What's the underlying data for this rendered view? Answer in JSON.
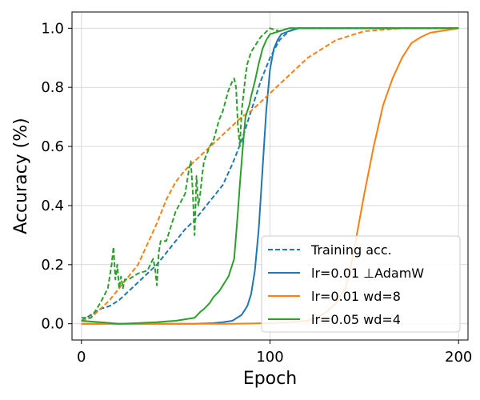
{
  "chart_data": {
    "type": "line",
    "title": "",
    "xlabel": "Epoch",
    "ylabel": "Accuracy (%)",
    "xlim": [
      -5,
      205
    ],
    "ylim": [
      -0.055,
      1.055
    ],
    "xticks": [
      0,
      100,
      200
    ],
    "yticks": [
      0.0,
      0.2,
      0.4,
      0.6,
      0.8,
      1.0
    ],
    "xtick_labels": [
      "0",
      "100",
      "200"
    ],
    "ytick_labels": [
      "0.0",
      "0.2",
      "0.4",
      "0.6",
      "0.8",
      "1.0"
    ],
    "grid": true,
    "legend_position": "lower-right",
    "legend": [
      {
        "label": "Training acc.",
        "color": "#1f77b4",
        "style": "dashed"
      },
      {
        "label": "lr=0.01 ⊥AdamW",
        "color": "#1f77b4",
        "style": "solid"
      },
      {
        "label": "lr=0.01 wd=8",
        "color": "#ff7f0e",
        "style": "solid"
      },
      {
        "label": "lr=0.05 wd=4",
        "color": "#2ca02c",
        "style": "solid"
      }
    ],
    "series": [
      {
        "color": "#1f77b4",
        "style": "dashed",
        "x": [
          0,
          5,
          10,
          15,
          20,
          25,
          30,
          35,
          40,
          45,
          50,
          55,
          60,
          65,
          70,
          75,
          80,
          85,
          90,
          95,
          100,
          105,
          110,
          115,
          120,
          200
        ],
        "values": [
          0.01,
          0.03,
          0.05,
          0.06,
          0.08,
          0.11,
          0.14,
          0.17,
          0.2,
          0.24,
          0.28,
          0.32,
          0.35,
          0.39,
          0.43,
          0.47,
          0.54,
          0.62,
          0.72,
          0.82,
          0.9,
          0.96,
          0.99,
          1.0,
          1.0,
          1.0
        ]
      },
      {
        "color": "#1f77b4",
        "style": "solid",
        "x": [
          0,
          20,
          40,
          60,
          70,
          75,
          80,
          85,
          88,
          90,
          92,
          94,
          96,
          98,
          100,
          102,
          104,
          106,
          110,
          115,
          120,
          200
        ],
        "values": [
          0.0,
          0.0,
          0.0,
          0.0,
          0.002,
          0.005,
          0.01,
          0.03,
          0.06,
          0.1,
          0.18,
          0.32,
          0.52,
          0.72,
          0.86,
          0.93,
          0.96,
          0.98,
          0.99,
          1.0,
          1.0,
          1.0
        ]
      },
      {
        "color": "#ff7f0e",
        "style": "dashed",
        "x": [
          0,
          5,
          10,
          15,
          20,
          25,
          30,
          35,
          40,
          45,
          50,
          55,
          60,
          65,
          70,
          75,
          80,
          85,
          90,
          95,
          100,
          105,
          110,
          115,
          120,
          125,
          130,
          135,
          140,
          145,
          150,
          160,
          170,
          180,
          190,
          200
        ],
        "values": [
          0.01,
          0.02,
          0.05,
          0.08,
          0.12,
          0.16,
          0.2,
          0.27,
          0.34,
          0.42,
          0.48,
          0.52,
          0.55,
          0.58,
          0.61,
          0.64,
          0.67,
          0.7,
          0.72,
          0.75,
          0.78,
          0.81,
          0.84,
          0.87,
          0.9,
          0.92,
          0.94,
          0.96,
          0.97,
          0.98,
          0.99,
          0.995,
          1.0,
          1.0,
          1.0,
          1.0
        ]
      },
      {
        "color": "#ff7f0e",
        "style": "solid",
        "x": [
          0,
          40,
          80,
          100,
          110,
          120,
          125,
          130,
          135,
          140,
          143,
          146,
          150,
          155,
          160,
          165,
          170,
          175,
          180,
          185,
          190,
          195,
          200
        ],
        "values": [
          0.0,
          0.0,
          0.0,
          0.002,
          0.005,
          0.01,
          0.02,
          0.04,
          0.07,
          0.12,
          0.2,
          0.3,
          0.44,
          0.6,
          0.74,
          0.83,
          0.9,
          0.95,
          0.97,
          0.985,
          0.99,
          0.995,
          1.0
        ]
      },
      {
        "color": "#2ca02c",
        "style": "dashed",
        "x": [
          0,
          5,
          10,
          14,
          16,
          17,
          18,
          19,
          20,
          21,
          22,
          23,
          25,
          30,
          35,
          38,
          39,
          40,
          41,
          42,
          45,
          50,
          55,
          57,
          58,
          59,
          60,
          61,
          62,
          63,
          64,
          65,
          68,
          70,
          73,
          75,
          78,
          80,
          81,
          82,
          83,
          84,
          85,
          86,
          87,
          88,
          90,
          95,
          100,
          105,
          110,
          115,
          120,
          200
        ],
        "values": [
          0.02,
          0.02,
          0.07,
          0.12,
          0.2,
          0.26,
          0.15,
          0.2,
          0.12,
          0.16,
          0.12,
          0.15,
          0.15,
          0.17,
          0.18,
          0.22,
          0.19,
          0.13,
          0.24,
          0.28,
          0.28,
          0.38,
          0.44,
          0.52,
          0.55,
          0.45,
          0.3,
          0.5,
          0.4,
          0.44,
          0.5,
          0.55,
          0.6,
          0.62,
          0.69,
          0.72,
          0.79,
          0.82,
          0.83,
          0.8,
          0.67,
          0.6,
          0.72,
          0.78,
          0.84,
          0.88,
          0.92,
          0.97,
          1.0,
          0.99,
          1.0,
          1.0,
          1.0,
          1.0
        ]
      },
      {
        "color": "#2ca02c",
        "style": "solid",
        "x": [
          0,
          10,
          20,
          30,
          40,
          45,
          50,
          55,
          60,
          63,
          65,
          68,
          70,
          73,
          75,
          78,
          80,
          81,
          82,
          83,
          84,
          85,
          86,
          87,
          88,
          89,
          90,
          92,
          94,
          96,
          98,
          100,
          105,
          110,
          115,
          120,
          200
        ],
        "values": [
          0.01,
          0.005,
          0.0,
          0.002,
          0.005,
          0.008,
          0.01,
          0.015,
          0.02,
          0.04,
          0.05,
          0.07,
          0.09,
          0.11,
          0.13,
          0.16,
          0.2,
          0.22,
          0.3,
          0.38,
          0.47,
          0.55,
          0.63,
          0.7,
          0.72,
          0.74,
          0.77,
          0.82,
          0.88,
          0.93,
          0.96,
          0.98,
          0.99,
          1.0,
          1.0,
          1.0,
          1.0
        ]
      }
    ]
  }
}
